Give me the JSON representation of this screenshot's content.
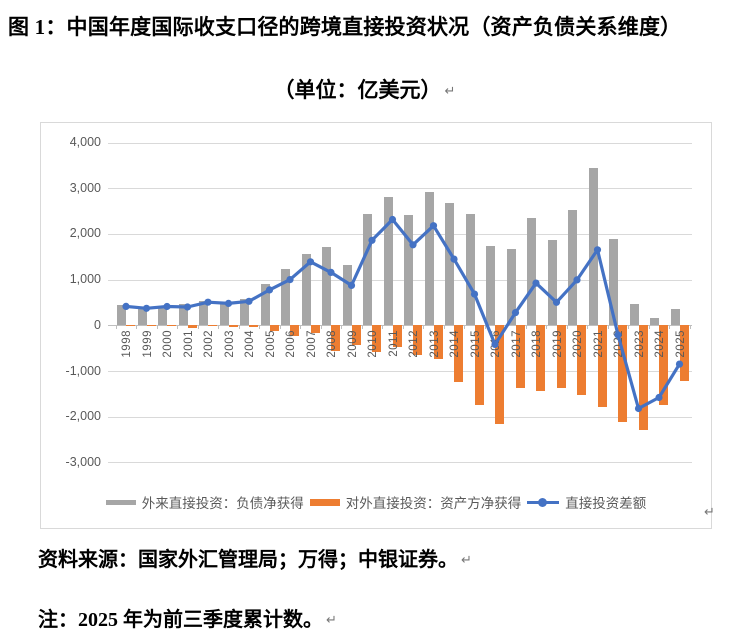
{
  "figure": {
    "title": "图 1：中国年度国际收支口径的跨境直接投资状况（资产负债关系维度）",
    "subtitle": "（单位：亿美元）",
    "source_note": "资料来源：国家外汇管理局；万得；中银证券。",
    "footnote": "注：2025 年为前三季度累计数。",
    "return_mark": "↵"
  },
  "chart_data": {
    "type": "bar",
    "subtype": "clustered bars with line overlay",
    "unit": "亿美元",
    "categories": [
      "1998",
      "1999",
      "2000",
      "2001",
      "2002",
      "2003",
      "2004",
      "2005",
      "2006",
      "2007",
      "2008",
      "2009",
      "2010",
      "2011",
      "2012",
      "2013",
      "2014",
      "2015",
      "2016",
      "2017",
      "2018",
      "2019",
      "2020",
      "2021",
      "2022",
      "2023",
      "2024",
      "2025"
    ],
    "series": [
      {
        "name": "外来直接投资：负债净获得",
        "type": "bar",
        "color": "#A6A6A6",
        "values": [
          440,
          390,
          420,
          470,
          530,
          510,
          570,
          900,
          1240,
          1560,
          1716,
          1311,
          2437,
          2801,
          2412,
          2909,
          2680,
          2426,
          1747,
          1660,
          2354,
          1872,
          2531,
          3441,
          1900,
          470,
          160,
          360
        ]
      },
      {
        "name": "对外直接投资：资产方净获得",
        "type": "bar",
        "color": "#ED7D31",
        "values": [
          -26,
          -18,
          -9,
          -69,
          -25,
          -30,
          -45,
          -125,
          -240,
          -170,
          -559,
          -439,
          -578,
          -485,
          -650,
          -730,
          -1231,
          -1744,
          -2164,
          -1383,
          -1430,
          -1369,
          -1537,
          -1788,
          -2110,
          -2290,
          -1740,
          -1210
        ]
      },
      {
        "name": "直接投资差额",
        "type": "line",
        "color": "#4472C4",
        "values": [
          414,
          372,
          411,
          401,
          505,
          480,
          525,
          775,
          1000,
          1390,
          1157,
          872,
          1859,
          2316,
          1762,
          2179,
          1449,
          682,
          -417,
          277,
          924,
          503,
          994,
          1653,
          -210,
          -1820,
          -1580,
          -850
        ]
      }
    ],
    "y_axis": {
      "min": -3000,
      "max": 4000,
      "step": 1000,
      "tick_labels": [
        "4,000",
        "3,000",
        "2,000",
        "1,000",
        "0",
        "-1,000",
        "-2,000",
        "-3,000"
      ]
    },
    "x_tick_rotation": 90,
    "grid": true,
    "legend_position": "bottom",
    "axis_text_color": "#595959",
    "gridline_color": "#D9D9D9"
  }
}
